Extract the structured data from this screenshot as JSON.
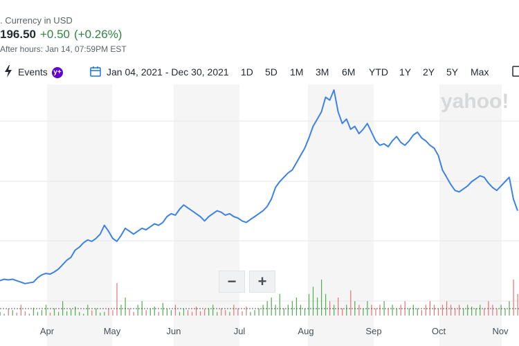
{
  "quote": {
    "currency_text": ". Currency in USD",
    "price": "196.50",
    "change": "+0.50",
    "change_pct": "(+0.26%)",
    "after_hours": "After hours: Jan 14, 07:59PM EST",
    "up_color": "#2e8540"
  },
  "toolbar": {
    "events_icon": "lightning-icon",
    "events_label": "Events",
    "premium_badge": "y+",
    "calendar_icon": "calendar-icon",
    "date_range": "Jan 04, 2021 - Dec 30, 2021",
    "ranges": [
      "1D",
      "5D",
      "1M",
      "3M",
      "6M",
      "YTD",
      "1Y",
      "2Y",
      "5Y",
      "Max"
    ],
    "edge_icon": "chart-settings-icon"
  },
  "watermark": "yahoo!",
  "zoom": {
    "minus": "−",
    "plus": "+"
  },
  "chart_data": {
    "type": "line",
    "xlabel": "",
    "ylabel": "",
    "x_tick_labels": [
      "Apr",
      "May",
      "Jun",
      "Jul",
      "Aug",
      "Sep",
      "Oct",
      "Nov"
    ],
    "line_color": "#3b82e4",
    "grid": true,
    "price_series": [
      0.04,
      0.05,
      0.045,
      0.05,
      0.04,
      0.03,
      0.02,
      0.025,
      0.03,
      0.06,
      0.08,
      0.09,
      0.085,
      0.1,
      0.12,
      0.15,
      0.18,
      0.2,
      0.25,
      0.27,
      0.3,
      0.32,
      0.31,
      0.33,
      0.36,
      0.42,
      0.38,
      0.33,
      0.31,
      0.35,
      0.4,
      0.38,
      0.36,
      0.38,
      0.4,
      0.39,
      0.41,
      0.43,
      0.42,
      0.44,
      0.48,
      0.5,
      0.49,
      0.53,
      0.56,
      0.54,
      0.52,
      0.5,
      0.48,
      0.45,
      0.48,
      0.5,
      0.52,
      0.51,
      0.49,
      0.5,
      0.48,
      0.47,
      0.45,
      0.44,
      0.46,
      0.48,
      0.5,
      0.52,
      0.55,
      0.6,
      0.68,
      0.72,
      0.75,
      0.78,
      0.8,
      0.85,
      0.9,
      0.95,
      1.02,
      1.1,
      1.15,
      1.2,
      1.3,
      1.28,
      1.35,
      1.2,
      1.12,
      1.15,
      1.08,
      1.1,
      1.05,
      1.08,
      1.12,
      1.06,
      1.0,
      0.97,
      0.98,
      0.96,
      1.0,
      1.03,
      0.99,
      0.97,
      1.0,
      1.04,
      1.06,
      1.02,
      1.0,
      0.97,
      0.95,
      0.9,
      0.8,
      0.75,
      0.7,
      0.66,
      0.65,
      0.67,
      0.69,
      0.72,
      0.74,
      0.76,
      0.75,
      0.71,
      0.68,
      0.66,
      0.69,
      0.72,
      0.75,
      0.6,
      0.52
    ],
    "volume_series": [
      0.1,
      0.05,
      0.2,
      0.15,
      0.08,
      0.3,
      0.12,
      0.05,
      0.22,
      0.1,
      0.15,
      0.3,
      0.08,
      0.2,
      0.1,
      0.4,
      0.12,
      0.18,
      0.25,
      0.1,
      0.05,
      0.3,
      0.14,
      0.2,
      0.08,
      0.1,
      0.2,
      0.15,
      0.9,
      0.3,
      0.5,
      0.2,
      0.1,
      0.3,
      0.4,
      0.15,
      0.2,
      0.25,
      0.1,
      0.35,
      0.2,
      0.15,
      0.3,
      0.1,
      0.2,
      0.15,
      0.1,
      0.25,
      0.12,
      0.18,
      0.2,
      0.3,
      0.1,
      0.2,
      0.15,
      0.1,
      0.3,
      0.2,
      0.12,
      0.25,
      0.1,
      0.15,
      0.2,
      0.3,
      0.4,
      0.5,
      0.3,
      0.6,
      0.2,
      0.3,
      0.4,
      0.5,
      0.3,
      0.2,
      0.6,
      0.8,
      0.5,
      1.0,
      0.6,
      0.4,
      0.3,
      0.5,
      0.2,
      0.3,
      0.7,
      0.4,
      0.3,
      0.2,
      0.4,
      0.3,
      0.2,
      0.3,
      0.4,
      0.2,
      0.3,
      0.2,
      0.3,
      0.4,
      0.2,
      0.3,
      0.2,
      0.15,
      0.3,
      0.4,
      0.3,
      0.2,
      0.3,
      0.4,
      0.3,
      0.2,
      0.3,
      0.2,
      0.3,
      0.25,
      0.2,
      0.3,
      0.2,
      0.4,
      0.3,
      0.2,
      0.3,
      0.2,
      0.4,
      1.0,
      0.6
    ]
  }
}
